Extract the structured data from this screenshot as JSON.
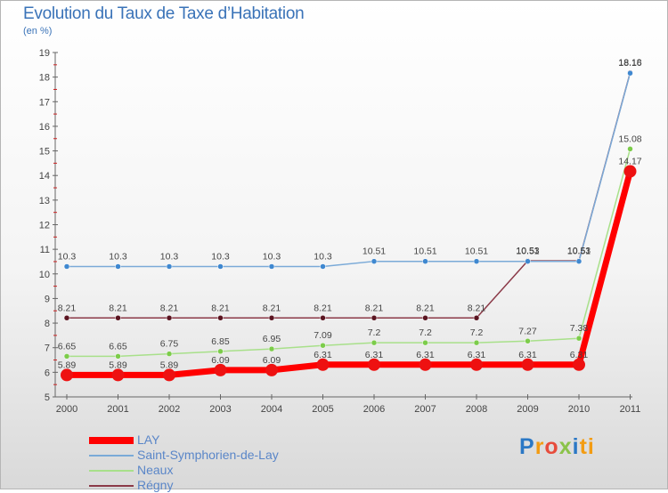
{
  "chart_data": {
    "type": "line",
    "title": "Evolution du Taux de Taxe d’Habitation",
    "subtitle": "(en %)",
    "xlabel": "",
    "ylabel": "(en %)",
    "categories": [
      "2000",
      "2001",
      "2002",
      "2003",
      "2004",
      "2005",
      "2006",
      "2007",
      "2008",
      "2009",
      "2010",
      "2011"
    ],
    "ylim": [
      5,
      19
    ],
    "yticks": [
      "5",
      "6",
      "7",
      "8",
      "9",
      "10",
      "11",
      "12",
      "13",
      "14",
      "15",
      "16",
      "17",
      "18",
      "19"
    ],
    "legend_position": "bottom-left",
    "series": [
      {
        "name": "Régny",
        "color": "#8b3a48",
        "marker_color": "#5a1420",
        "values": [
          8.21,
          8.21,
          8.21,
          8.21,
          8.21,
          8.21,
          8.21,
          8.21,
          8.21,
          10.53,
          10.53,
          18.18
        ],
        "labels": [
          "8.21",
          "8.21",
          "8.21",
          "8.21",
          "8.21",
          "8.21",
          "8.21",
          "8.21",
          "8.21",
          "10.53",
          "10.53",
          "18.18"
        ]
      },
      {
        "name": "Saint-Symphorien-de-Lay",
        "color": "#7aaad8",
        "marker_color": "#3f88d0",
        "values": [
          10.3,
          10.3,
          10.3,
          10.3,
          10.3,
          10.3,
          10.51,
          10.51,
          10.51,
          10.51,
          10.51,
          18.16
        ],
        "labels": [
          "10.3",
          "10.3",
          "10.3",
          "10.3",
          "10.3",
          "10.3",
          "10.51",
          "10.51",
          "10.51",
          "10.51",
          "10.51",
          "18.16"
        ]
      },
      {
        "name": "Neaux",
        "color": "#a8e08a",
        "marker_color": "#7ccc4a",
        "values": [
          6.65,
          6.65,
          6.75,
          6.85,
          6.95,
          7.09,
          7.2,
          7.2,
          7.2,
          7.27,
          7.38,
          15.08
        ],
        "labels": [
          "6.65",
          "6.65",
          "6.75",
          "6.85",
          "6.95",
          "7.09",
          "7.2",
          "7.2",
          "7.2",
          "7.27",
          "7.38",
          "15.08"
        ]
      },
      {
        "name": "LAY",
        "color": "#ff0000",
        "marker_color": "#ee1111",
        "values": [
          5.89,
          5.89,
          5.89,
          6.09,
          6.09,
          6.31,
          6.31,
          6.31,
          6.31,
          6.31,
          6.31,
          14.17
        ],
        "labels": [
          "5.89",
          "5.89",
          "5.89",
          "6.09",
          "6.09",
          "6.31",
          "6.31",
          "6.31",
          "6.31",
          "6.31",
          "6.31",
          "14.17"
        ]
      }
    ],
    "legend": [
      "LAY",
      "Saint-Symphorien-de-Lay",
      "Neaux",
      "Régny"
    ]
  },
  "brand": {
    "letters": [
      "P",
      "r",
      "o",
      "x",
      "i",
      "ti"
    ]
  }
}
